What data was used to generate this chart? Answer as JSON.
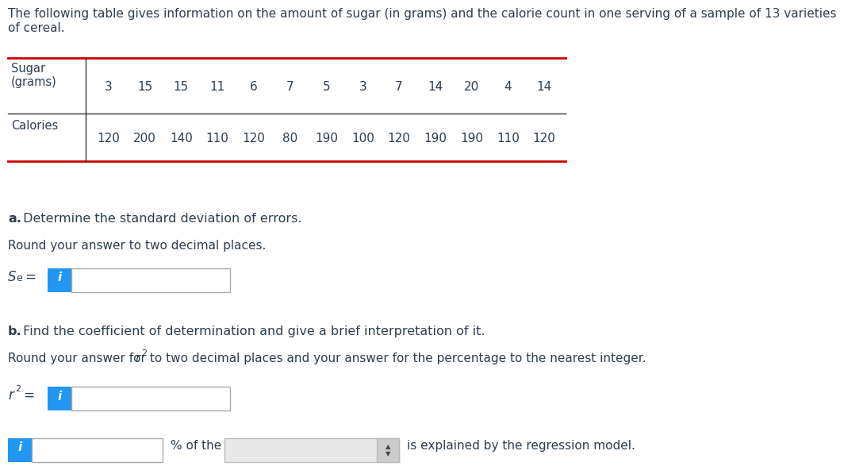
{
  "title_text1": "The following table gives information on the amount of sugar (in grams) and the calorie count in one serving of a sample of 13 varieties",
  "title_text2": "of cereal.",
  "sugar_label": "Sugar\n(grams)",
  "calories_label": "Calories",
  "sugar_values": [
    3,
    15,
    15,
    11,
    6,
    7,
    5,
    3,
    7,
    14,
    20,
    4,
    14
  ],
  "calorie_values": [
    120,
    200,
    140,
    110,
    120,
    80,
    190,
    100,
    120,
    190,
    190,
    110,
    120
  ],
  "part_a_bold": "a.",
  "part_a_rest": " Determine the standard deviation of errors.",
  "part_a_instruction": "Round your answer to two decimal places.",
  "part_b_bold": "b.",
  "part_b_rest": " Find the coefficient of determination and give a brief interpretation of it.",
  "part_b_instruction": "Round your answer for r",
  "part_b_instruction2": " to two decimal places and your answer for the percentage to the nearest integer.",
  "pct_of_the": "% of the",
  "is_explained": "is explained by the regression model.",
  "table_top_line_color": "#cc0000",
  "table_bottom_line_color": "#cc0000",
  "table_inner_line_color": "#333333",
  "bg_color": "#ffffff",
  "text_color": "#2d3e50",
  "info_btn_color": "#2196F3",
  "bg_color_dropdown": "#e8e8e8"
}
